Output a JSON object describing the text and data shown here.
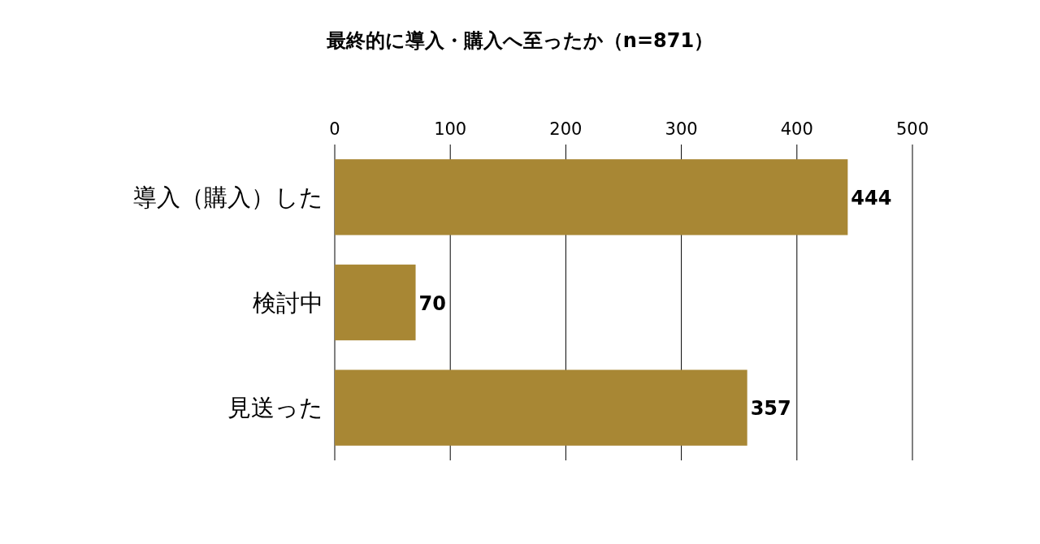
{
  "chart_data": {
    "type": "bar",
    "orientation": "horizontal",
    "title": "最終的に導入・購入へ至ったか（n=871）",
    "categories": [
      "導入（購入）した",
      "検討中",
      "見送った"
    ],
    "values": [
      444,
      70,
      357
    ],
    "color": "#a88734",
    "xlim": [
      0,
      500
    ],
    "xticks": [
      0,
      100,
      200,
      300,
      400,
      500
    ],
    "grid": "x",
    "data_labels": true
  }
}
